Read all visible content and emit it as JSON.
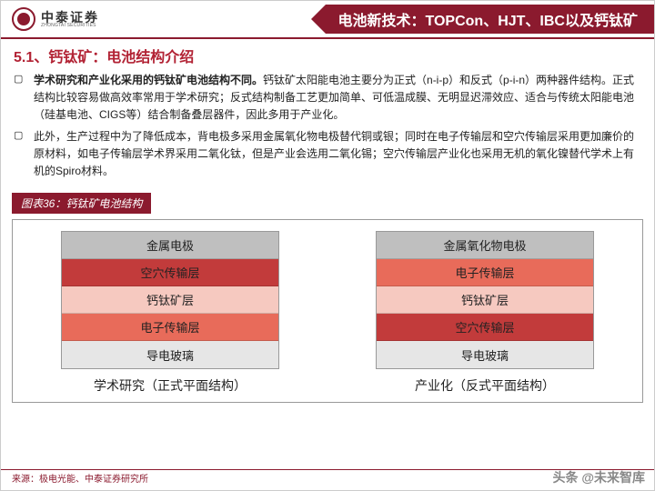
{
  "header": {
    "logo_cn": "中泰证券",
    "logo_en": "ZHONGTAI SECURITIES",
    "title": "电池新技术：TOPCon、HJT、IBC以及钙钛矿"
  },
  "section_title": "5.1、钙钛矿：电池结构介绍",
  "paragraphs": [
    {
      "bold": "学术研究和产业化采用的钙钛矿电池结构不同。",
      "rest": "钙钛矿太阳能电池主要分为正式（n-i-p）和反式（p-i-n）两种器件结构。正式结构比较容易做高效率常用于学术研究；反式结构制备工艺更加简单、可低温成膜、无明显迟滞效应、适合与传统太阳能电池（硅基电池、CIGS等）结合制备叠层器件，因此多用于产业化。"
    },
    {
      "bold": "",
      "rest": "此外，生产过程中为了降低成本，背电极多采用金属氧化物电极替代铜或银；同时在电子传输层和空穴传输层采用更加廉价的原材料，如电子传输层学术界采用二氧化钛，但是产业会选用二氧化锡；空穴传输层产业化也采用无机的氧化镍替代学术上有机的Spiro材料。"
    }
  ],
  "figure": {
    "title": "图表36：钙钛矿电池结构",
    "left": {
      "layers": [
        {
          "label": "金属电极",
          "color": "#bfbfbf"
        },
        {
          "label": "空穴传输层",
          "color": "#c23b3b"
        },
        {
          "label": "钙钛矿层",
          "color": "#f6c9c0"
        },
        {
          "label": "电子传输层",
          "color": "#e86b5a"
        },
        {
          "label": "导电玻璃",
          "color": "#e6e6e6"
        }
      ],
      "caption": "学术研究（正式平面结构）"
    },
    "right": {
      "layers": [
        {
          "label": "金属氧化物电极",
          "color": "#bfbfbf"
        },
        {
          "label": "电子传输层",
          "color": "#e86b5a"
        },
        {
          "label": "钙钛矿层",
          "color": "#f6c9c0"
        },
        {
          "label": "空穴传输层",
          "color": "#c23b3b"
        },
        {
          "label": "导电玻璃",
          "color": "#e6e6e6"
        }
      ],
      "caption": "产业化（反式平面结构）"
    }
  },
  "source": "来源：极电光能、中泰证券研究所",
  "watermark": "头条 @未来智库"
}
